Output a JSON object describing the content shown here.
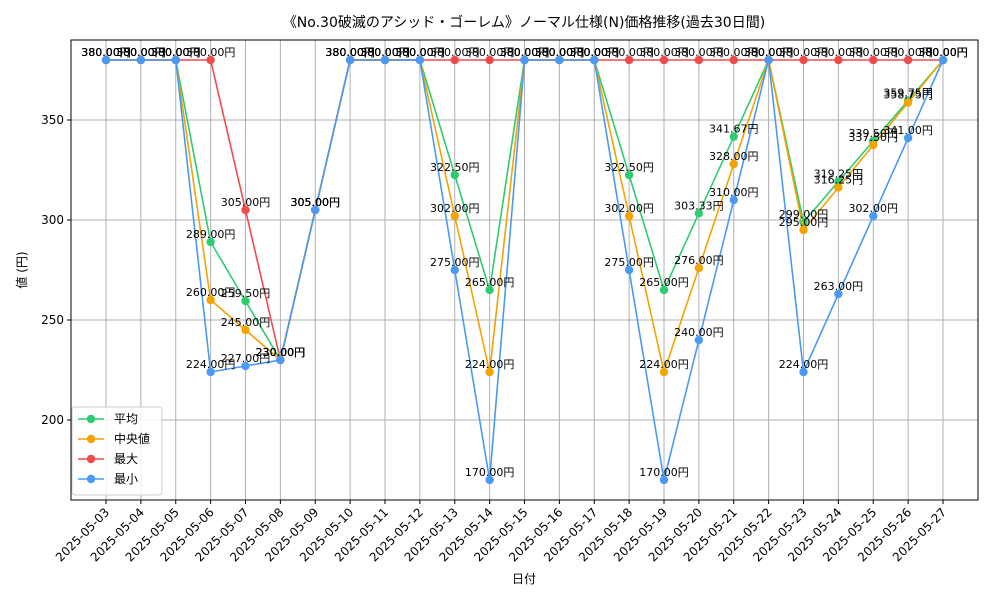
{
  "chart_data": {
    "type": "line",
    "title": "《No.30破滅のアシッド・ゴーレム》ノーマル仕様(N)価格推移(過去30日間)",
    "xlabel": "日付",
    "ylabel": "値 (円)",
    "ylim": [
      160,
      390
    ],
    "yticks": [
      200,
      250,
      300,
      350
    ],
    "grid": true,
    "legend_position": "lower-left",
    "label_suffix": "円",
    "categories": [
      "2025-05-03",
      "2025-05-04",
      "2025-05-05",
      "2025-05-06",
      "2025-05-07",
      "2025-05-08",
      "2025-05-09",
      "2025-05-10",
      "2025-05-11",
      "2025-05-12",
      "2025-05-13",
      "2025-05-14",
      "2025-05-15",
      "2025-05-16",
      "2025-05-17",
      "2025-05-18",
      "2025-05-19",
      "2025-05-20",
      "2025-05-21",
      "2025-05-22",
      "2025-05-23",
      "2025-05-24",
      "2025-05-25",
      "2025-05-26",
      "2025-05-27"
    ],
    "series": [
      {
        "name": "平均",
        "color": "#2ecc71",
        "values": [
          380,
          380,
          380,
          289,
          259.5,
          230,
          305,
          380,
          380,
          380,
          322.5,
          265,
          380,
          380,
          380,
          322.5,
          265,
          303.33,
          341.67,
          380,
          299,
          319.25,
          339.5,
          359.75,
          380
        ]
      },
      {
        "name": "中央値",
        "color": "#f5a300",
        "values": [
          380,
          380,
          380,
          260,
          245,
          230,
          305,
          380,
          380,
          380,
          302,
          224,
          380,
          380,
          380,
          302,
          224,
          276,
          328,
          380,
          295,
          316.25,
          337.5,
          358.75,
          380
        ]
      },
      {
        "name": "最大",
        "color": "#ef4b4b",
        "values": [
          380,
          380,
          380,
          380,
          305,
          230,
          305,
          380,
          380,
          380,
          380,
          380,
          380,
          380,
          380,
          380,
          380,
          380,
          380,
          380,
          380,
          380,
          380,
          380,
          380
        ]
      },
      {
        "name": "最小",
        "color": "#4a9af5",
        "values": [
          380,
          380,
          380,
          224,
          227,
          230,
          305,
          380,
          380,
          380,
          275,
          170,
          380,
          380,
          380,
          275,
          170,
          240,
          310,
          380,
          224,
          263,
          302,
          341,
          380
        ]
      }
    ]
  }
}
